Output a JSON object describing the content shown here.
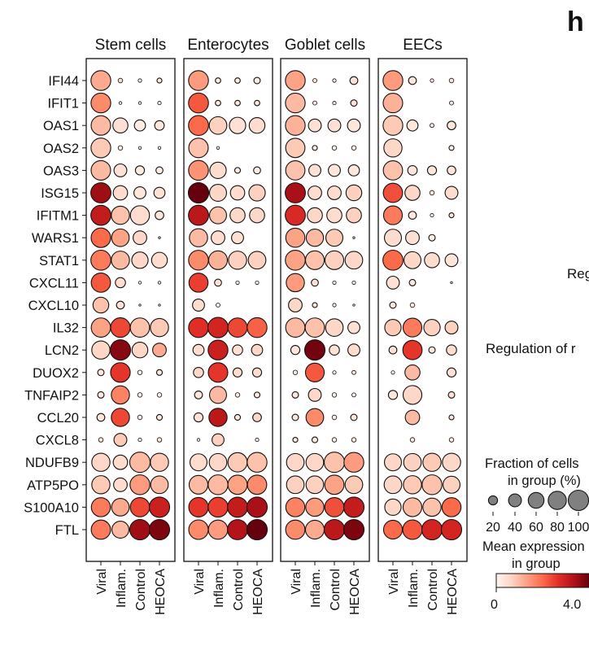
{
  "panel_letter": "h",
  "right_text": {
    "snippet_1": "Reg",
    "snippet_2": "Regulation of r"
  },
  "chart_data": {
    "type": "dotplot",
    "groups": [
      "Stem cells",
      "Enterocytes",
      "Goblet cells",
      "EECs"
    ],
    "conditions": [
      "Viral",
      "Inflam.",
      "Control",
      "HEOCA"
    ],
    "genes": [
      "IFI44",
      "IFIT1",
      "OAS1",
      "OAS2",
      "OAS3",
      "ISG15",
      "IFITM1",
      "WARS1",
      "STAT1",
      "CXCL11",
      "CXCL10",
      "IL32",
      "LCN2",
      "DUOX2",
      "TNFAIP2",
      "CCL20",
      "CXCL8",
      "NDUFB9",
      "ATP5PO",
      "S100A10",
      "FTL"
    ],
    "size_metric": "Fraction of cells in group (%)",
    "color_metric": "Mean expression in group",
    "fraction": [
      [
        [
          95,
          5,
          3,
          6
        ],
        [
          95,
          7,
          7,
          10
        ],
        [
          95,
          4,
          3,
          15
        ],
        [
          95,
          15,
          3,
          5
        ]
      ],
      [
        [
          94,
          2,
          2,
          3
        ],
        [
          96,
          7,
          7,
          7
        ],
        [
          94,
          4,
          3,
          10
        ],
        [
          92,
          0,
          0,
          4
        ]
      ],
      [
        [
          92,
          55,
          30,
          22
        ],
        [
          97,
          75,
          65,
          60
        ],
        [
          94,
          40,
          40,
          40
        ],
        [
          94,
          30,
          4,
          18
        ]
      ],
      [
        [
          94,
          5,
          2,
          2
        ],
        [
          92,
          2,
          0,
          0
        ],
        [
          90,
          6,
          5,
          5
        ],
        [
          80,
          0,
          0,
          6
        ]
      ],
      [
        [
          92,
          40,
          20,
          12
        ],
        [
          95,
          65,
          8,
          12
        ],
        [
          90,
          35,
          35,
          30
        ],
        [
          90,
          22,
          20,
          18
        ]
      ],
      [
        [
          98,
          50,
          35,
          30
        ],
        [
          100,
          70,
          50,
          65
        ],
        [
          98,
          45,
          45,
          60
        ],
        [
          90,
          55,
          5,
          40
        ]
      ],
      [
        [
          97,
          80,
          88,
          18
        ],
        [
          98,
          70,
          55,
          55
        ],
        [
          98,
          55,
          55,
          55
        ],
        [
          85,
          15,
          3,
          6
        ]
      ],
      [
        [
          92,
          75,
          45,
          1
        ],
        [
          80,
          45,
          35,
          0
        ],
        [
          88,
          72,
          70,
          1
        ],
        [
          70,
          45,
          10,
          0
        ]
      ],
      [
        [
          97,
          80,
          65,
          60
        ],
        [
          95,
          85,
          80,
          75
        ],
        [
          96,
          85,
          85,
          75
        ],
        [
          97,
          70,
          55,
          40
        ]
      ],
      [
        [
          90,
          25,
          2,
          2
        ],
        [
          88,
          12,
          3,
          3
        ],
        [
          80,
          12,
          3,
          3
        ],
        [
          40,
          10,
          0,
          1
        ]
      ],
      [
        [
          60,
          15,
          1,
          1
        ],
        [
          35,
          4,
          0,
          0
        ],
        [
          45,
          6,
          3,
          1
        ],
        [
          10,
          5,
          0,
          0
        ]
      ],
      [
        [
          90,
          92,
          90,
          80
        ],
        [
          95,
          100,
          90,
          95
        ],
        [
          90,
          90,
          75,
          35
        ],
        [
          65,
          85,
          65,
          40
        ]
      ],
      [
        [
          80,
          100,
          60,
          45
        ],
        [
          30,
          95,
          25,
          30
        ],
        [
          20,
          100,
          25,
          35
        ],
        [
          15,
          90,
          10,
          25
        ]
      ],
      [
        [
          10,
          93,
          5,
          8
        ],
        [
          25,
          92,
          20,
          20
        ],
        [
          5,
          85,
          3,
          4
        ],
        [
          3,
          55,
          0,
          20
        ]
      ],
      [
        [
          10,
          80,
          5,
          5
        ],
        [
          15,
          70,
          5,
          8
        ],
        [
          10,
          40,
          5,
          4
        ],
        [
          20,
          85,
          0,
          10
        ]
      ],
      [
        [
          15,
          80,
          5,
          8
        ],
        [
          20,
          80,
          8,
          18
        ],
        [
          10,
          75,
          5,
          10
        ],
        [
          0,
          50,
          0,
          6
        ]
      ],
      [
        [
          5,
          40,
          3,
          5
        ],
        [
          2,
          35,
          0,
          3
        ],
        [
          6,
          8,
          5,
          5
        ],
        [
          0,
          5,
          0,
          5
        ]
      ],
      [
        [
          80,
          50,
          100,
          80
        ],
        [
          70,
          75,
          90,
          95
        ],
        [
          75,
          75,
          100,
          95
        ],
        [
          70,
          75,
          80,
          80
        ]
      ],
      [
        [
          80,
          45,
          95,
          75
        ],
        [
          85,
          95,
          90,
          90
        ],
        [
          75,
          75,
          90,
          75
        ],
        [
          75,
          80,
          95,
          70
        ]
      ],
      [
        [
          88,
          75,
          90,
          100
        ],
        [
          92,
          95,
          98,
          100
        ],
        [
          88,
          80,
          90,
          100
        ],
        [
          65,
          85,
          80,
          88
        ]
      ],
      [
        [
          90,
          70,
          100,
          100
        ],
        [
          92,
          90,
          98,
          100
        ],
        [
          90,
          85,
          100,
          100
        ],
        [
          85,
          92,
          100,
          100
        ]
      ]
    ],
    "mean_expression": [
      [
        [
          1.2,
          0.5,
          0.2,
          0.3
        ],
        [
          1.4,
          0.2,
          0.2,
          0.2
        ],
        [
          1.3,
          0.3,
          0.3,
          0.4
        ],
        [
          1.4,
          0.3,
          0.3,
          0.3
        ]
      ],
      [
        [
          1.6,
          0.3,
          0.2,
          0.2
        ],
        [
          2.2,
          0.3,
          0.3,
          0.3
        ],
        [
          1.0,
          0.3,
          0.3,
          0.4
        ],
        [
          1.1,
          0.3,
          0.3,
          0.3
        ]
      ],
      [
        [
          1.0,
          0.4,
          0.2,
          0.3
        ],
        [
          2.0,
          0.7,
          0.4,
          0.5
        ],
        [
          1.1,
          0.4,
          0.4,
          0.3
        ],
        [
          0.8,
          0.3,
          0.2,
          0.3
        ]
      ],
      [
        [
          0.8,
          0.3,
          0.2,
          0.2
        ],
        [
          0.9,
          0.2,
          0.2,
          0.2
        ],
        [
          0.8,
          0.2,
          0.2,
          0.2
        ],
        [
          0.6,
          0.2,
          0.2,
          0.2
        ]
      ],
      [
        [
          1.0,
          0.4,
          0.2,
          0.2
        ],
        [
          1.5,
          0.5,
          0.2,
          0.2
        ],
        [
          0.9,
          0.4,
          0.3,
          0.3
        ],
        [
          0.9,
          0.3,
          0.3,
          0.3
        ]
      ],
      [
        [
          3.5,
          0.5,
          0.3,
          0.4
        ],
        [
          4.0,
          0.6,
          0.5,
          0.7
        ],
        [
          3.4,
          0.5,
          0.5,
          0.7
        ],
        [
          2.3,
          0.6,
          0.2,
          0.5
        ]
      ],
      [
        [
          3.1,
          0.9,
          0.5,
          0.3
        ],
        [
          3.2,
          0.9,
          0.6,
          0.6
        ],
        [
          2.8,
          0.6,
          0.5,
          0.7
        ],
        [
          1.8,
          0.3,
          0.2,
          0.3
        ]
      ],
      [
        [
          2.0,
          1.3,
          0.6,
          0.2
        ],
        [
          1.0,
          0.5,
          0.4,
          0.2
        ],
        [
          1.3,
          1.0,
          0.8,
          0.2
        ],
        [
          0.5,
          0.4,
          0.2,
          0.2
        ]
      ],
      [
        [
          1.8,
          1.0,
          0.6,
          0.5
        ],
        [
          1.6,
          1.1,
          0.7,
          0.7
        ],
        [
          1.3,
          0.9,
          0.7,
          0.6
        ],
        [
          2.0,
          0.6,
          0.5,
          0.3
        ]
      ],
      [
        [
          2.2,
          0.5,
          0.2,
          0.2
        ],
        [
          2.5,
          0.4,
          0.2,
          0.2
        ],
        [
          1.4,
          0.4,
          0.2,
          0.2
        ],
        [
          0.4,
          0.3,
          0.2,
          0.2
        ]
      ],
      [
        [
          0.9,
          0.4,
          0.2,
          0.2
        ],
        [
          0.5,
          0.2,
          0.2,
          0.2
        ],
        [
          0.6,
          0.3,
          0.2,
          0.2
        ],
        [
          0.3,
          0.3,
          0.2,
          0.2
        ]
      ],
      [
        [
          1.3,
          2.4,
          0.9,
          0.8
        ],
        [
          2.7,
          2.9,
          2.4,
          2.1
        ],
        [
          1.0,
          0.9,
          0.6,
          0.4
        ],
        [
          0.8,
          1.8,
          0.7,
          0.7
        ]
      ],
      [
        [
          0.6,
          3.7,
          0.6,
          1.2
        ],
        [
          0.5,
          3.0,
          0.4,
          0.6
        ],
        [
          0.3,
          3.9,
          0.4,
          0.5
        ],
        [
          0.4,
          2.6,
          0.3,
          0.5
        ]
      ],
      [
        [
          0.3,
          2.6,
          0.2,
          0.3
        ],
        [
          0.6,
          2.6,
          0.5,
          0.5
        ],
        [
          0.2,
          2.2,
          0.2,
          0.3
        ],
        [
          0.2,
          1.0,
          0.2,
          0.4
        ]
      ],
      [
        [
          0.3,
          1.7,
          0.2,
          0.2
        ],
        [
          0.3,
          1.0,
          0.3,
          0.3
        ],
        [
          0.3,
          0.6,
          0.2,
          0.2
        ],
        [
          0.3,
          0.6,
          0.2,
          0.4
        ]
      ],
      [
        [
          0.3,
          2.4,
          0.2,
          0.3
        ],
        [
          0.4,
          3.2,
          0.3,
          0.6
        ],
        [
          0.3,
          1.6,
          0.2,
          0.3
        ],
        [
          0.2,
          1.0,
          0.2,
          0.3
        ]
      ],
      [
        [
          0.3,
          0.8,
          0.2,
          0.3
        ],
        [
          0.2,
          0.7,
          0.2,
          0.3
        ],
        [
          0.3,
          0.3,
          0.2,
          0.3
        ],
        [
          0.2,
          0.3,
          0.2,
          0.3
        ]
      ],
      [
        [
          0.6,
          0.5,
          1.0,
          0.8
        ],
        [
          0.5,
          0.6,
          0.8,
          0.9
        ],
        [
          0.6,
          0.6,
          0.9,
          1.4
        ],
        [
          0.6,
          0.7,
          0.8,
          0.6
        ]
      ],
      [
        [
          0.8,
          0.5,
          1.4,
          1.0
        ],
        [
          1.0,
          1.0,
          1.3,
          1.6
        ],
        [
          0.7,
          0.7,
          1.3,
          0.8
        ],
        [
          0.6,
          0.8,
          0.9,
          0.7
        ]
      ],
      [
        [
          1.8,
          1.2,
          2.4,
          3.0
        ],
        [
          2.6,
          2.5,
          3.1,
          3.4
        ],
        [
          1.7,
          1.4,
          2.3,
          3.1
        ],
        [
          0.6,
          1.0,
          0.9,
          2.0
        ]
      ],
      [
        [
          1.8,
          1.0,
          3.5,
          3.8
        ],
        [
          1.6,
          1.4,
          3.3,
          4.0
        ],
        [
          1.6,
          1.2,
          3.2,
          3.8
        ],
        [
          2.0,
          2.2,
          2.9,
          2.9
        ]
      ]
    ],
    "size_legend": {
      "title_line1": "Fraction of cells",
      "title_line2": "in group (%)",
      "values": [
        20,
        40,
        60,
        80,
        100
      ],
      "tick_labels": [
        "20",
        "40",
        "60",
        "80",
        "100"
      ]
    },
    "color_legend": {
      "title_line1": "Mean expression",
      "title_line2": "in group",
      "min": 0,
      "max": 4.0,
      "min_label": "0",
      "max_label": "4.0",
      "colors": [
        "#fff5f0",
        "#fdd4c2",
        "#fca082",
        "#fb6b4b",
        "#e32f27",
        "#b11218",
        "#67000d"
      ]
    }
  }
}
